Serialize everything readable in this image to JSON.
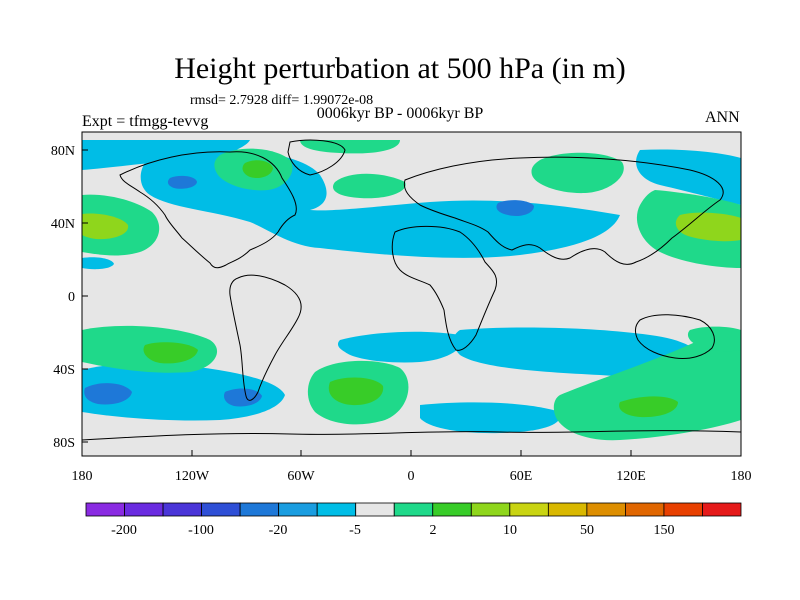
{
  "title": "Height perturbation at 500 hPa (in m)",
  "stats": "rmsd= 2.7928 diff= 1.99072e-08",
  "experiment": "Expt = tfmgg-tevvg",
  "period": "0006kyr BP - 0006kyr BP",
  "season": "ANN",
  "lat_ticks": [
    "80N",
    "40N",
    "0",
    "40S",
    "80S"
  ],
  "lon_ticks": [
    "180",
    "120W",
    "60W",
    "0",
    "60E",
    "120E",
    "180"
  ],
  "colorbar": {
    "colors": [
      "#8a2be2",
      "#6a2be0",
      "#4a35d8",
      "#2e4fd6",
      "#1e78d8",
      "#1a9de0",
      "#00bde6",
      "#e6e6e6",
      "#1fd98a",
      "#38cc28",
      "#8fd61c",
      "#c9d412",
      "#d9b800",
      "#dd8e00",
      "#e06600",
      "#e84000",
      "#e51a1a"
    ],
    "labels": [
      "-200",
      "-100",
      "-20",
      "-5",
      "2",
      "10",
      "50",
      "150"
    ]
  }
}
